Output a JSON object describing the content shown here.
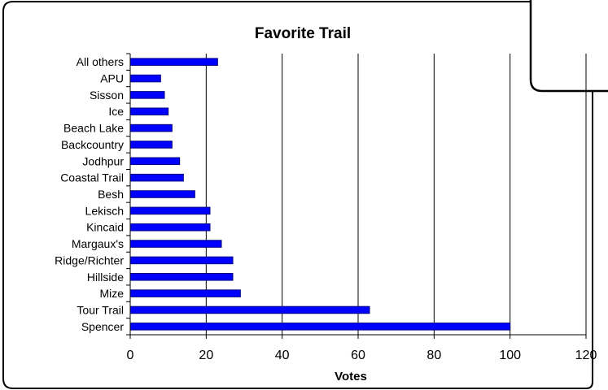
{
  "chart_data": {
    "type": "bar",
    "orientation": "horizontal",
    "title": "Favorite Trail",
    "xlabel": "Votes",
    "ylabel": "",
    "xlim": [
      0,
      120
    ],
    "xticks": [
      0,
      20,
      40,
      60,
      80,
      100,
      120
    ],
    "categories": [
      "All others",
      "APU",
      "Sisson",
      "Ice",
      "Beach Lake",
      "Backcountry",
      "Jodhpur",
      "Coastal Trail",
      "Besh",
      "Lekisch",
      "Kincaid",
      "Margaux's",
      "Ridge/Richter",
      "Hillside",
      "Mize",
      "Tour Trail",
      "Spencer"
    ],
    "values": [
      23,
      8,
      9,
      10,
      11,
      11,
      13,
      14,
      17,
      21,
      21,
      24,
      27,
      27,
      29,
      63,
      100
    ],
    "grid": "vertical",
    "legend": "none",
    "colors": {
      "bar_fill": "#0000ff",
      "bar_edge": "#000080",
      "grid": "#000000",
      "frame": "#000000"
    }
  }
}
